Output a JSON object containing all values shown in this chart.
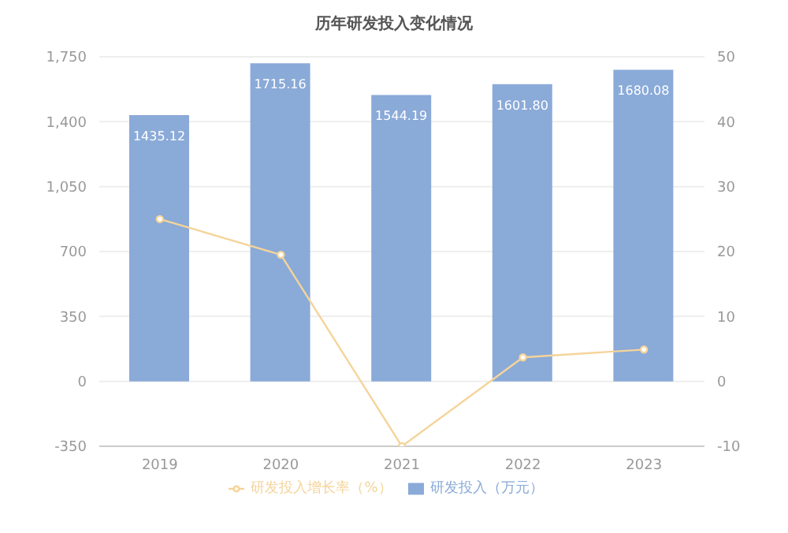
{
  "chart_data": {
    "type": "bar",
    "title": "历年研发投入变化情况",
    "categories": [
      "2019",
      "2020",
      "2021",
      "2022",
      "2023"
    ],
    "series": [
      {
        "name": "研发投入（万元）",
        "color": "#8aaad8",
        "values": [
          1435.12,
          1715.16,
          1544.19,
          1601.8,
          1680.08
        ],
        "value_labels": [
          "1435.12",
          "1715.16",
          "1544.19",
          "1601.80",
          "1680.08"
        ]
      },
      {
        "name": "研发投入增长率（%）",
        "type": "line",
        "axis": "y2",
        "color": "#f5d49a",
        "values": [
          25,
          19.5,
          -10,
          3.7,
          4.9
        ]
      }
    ],
    "ylim": [
      -350,
      1750
    ],
    "yticks": [
      -350,
      0,
      350,
      700,
      {
        "value": 1050,
        "label": "1,050"
      },
      {
        "value": 1400,
        "label": "1,400"
      },
      {
        "value": 1750,
        "label": "1,750"
      }
    ],
    "y2lim": [
      -10,
      50
    ],
    "y2ticks": [
      -10,
      0,
      10,
      20,
      30,
      40,
      50
    ],
    "grid": "y",
    "legend": "bottom",
    "marker": "circle"
  }
}
